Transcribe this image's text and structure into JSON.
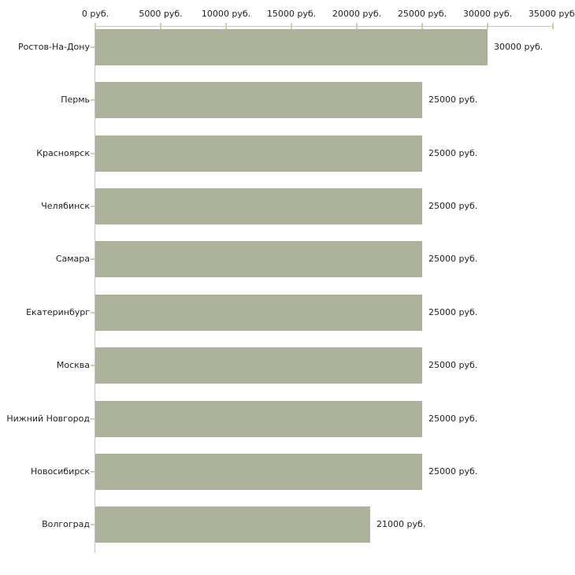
{
  "chart_data": {
    "type": "bar",
    "orientation": "horizontal",
    "title": "",
    "xlabel": "",
    "ylabel": "",
    "unit": "руб.",
    "categories": [
      "Ростов-На-Дону",
      "Пермь",
      "Красноярск",
      "Челябинск",
      "Самара",
      "Екатеринбург",
      "Москва",
      "Нижний Новгород",
      "Новосибирск",
      "Волгоград"
    ],
    "values": [
      30000,
      25000,
      25000,
      25000,
      25000,
      25000,
      25000,
      25000,
      25000,
      21000
    ],
    "value_labels": [
      "30000 руб.",
      "25000 руб.",
      "25000 руб.",
      "25000 руб.",
      "25000 руб.",
      "25000 руб.",
      "25000 руб.",
      "25000 руб.",
      "25000 руб.",
      "21000 руб."
    ],
    "x_ticks": [
      0,
      5000,
      10000,
      15000,
      20000,
      25000,
      30000,
      35000
    ],
    "x_tick_labels": [
      "0 руб.",
      "5000 руб.",
      "10000 руб.",
      "15000 руб.",
      "20000 руб.",
      "25000 руб.",
      "30000 руб.",
      "35000 руб."
    ],
    "xlim": [
      0,
      35000
    ],
    "grid": false,
    "legend": null,
    "colors": {
      "bar_fill": "#acb39a",
      "axis_line": "#c6c6c6",
      "tick_mark": "#d0d0a0",
      "text": "#1f1f1f",
      "background": "#ffffff"
    }
  }
}
